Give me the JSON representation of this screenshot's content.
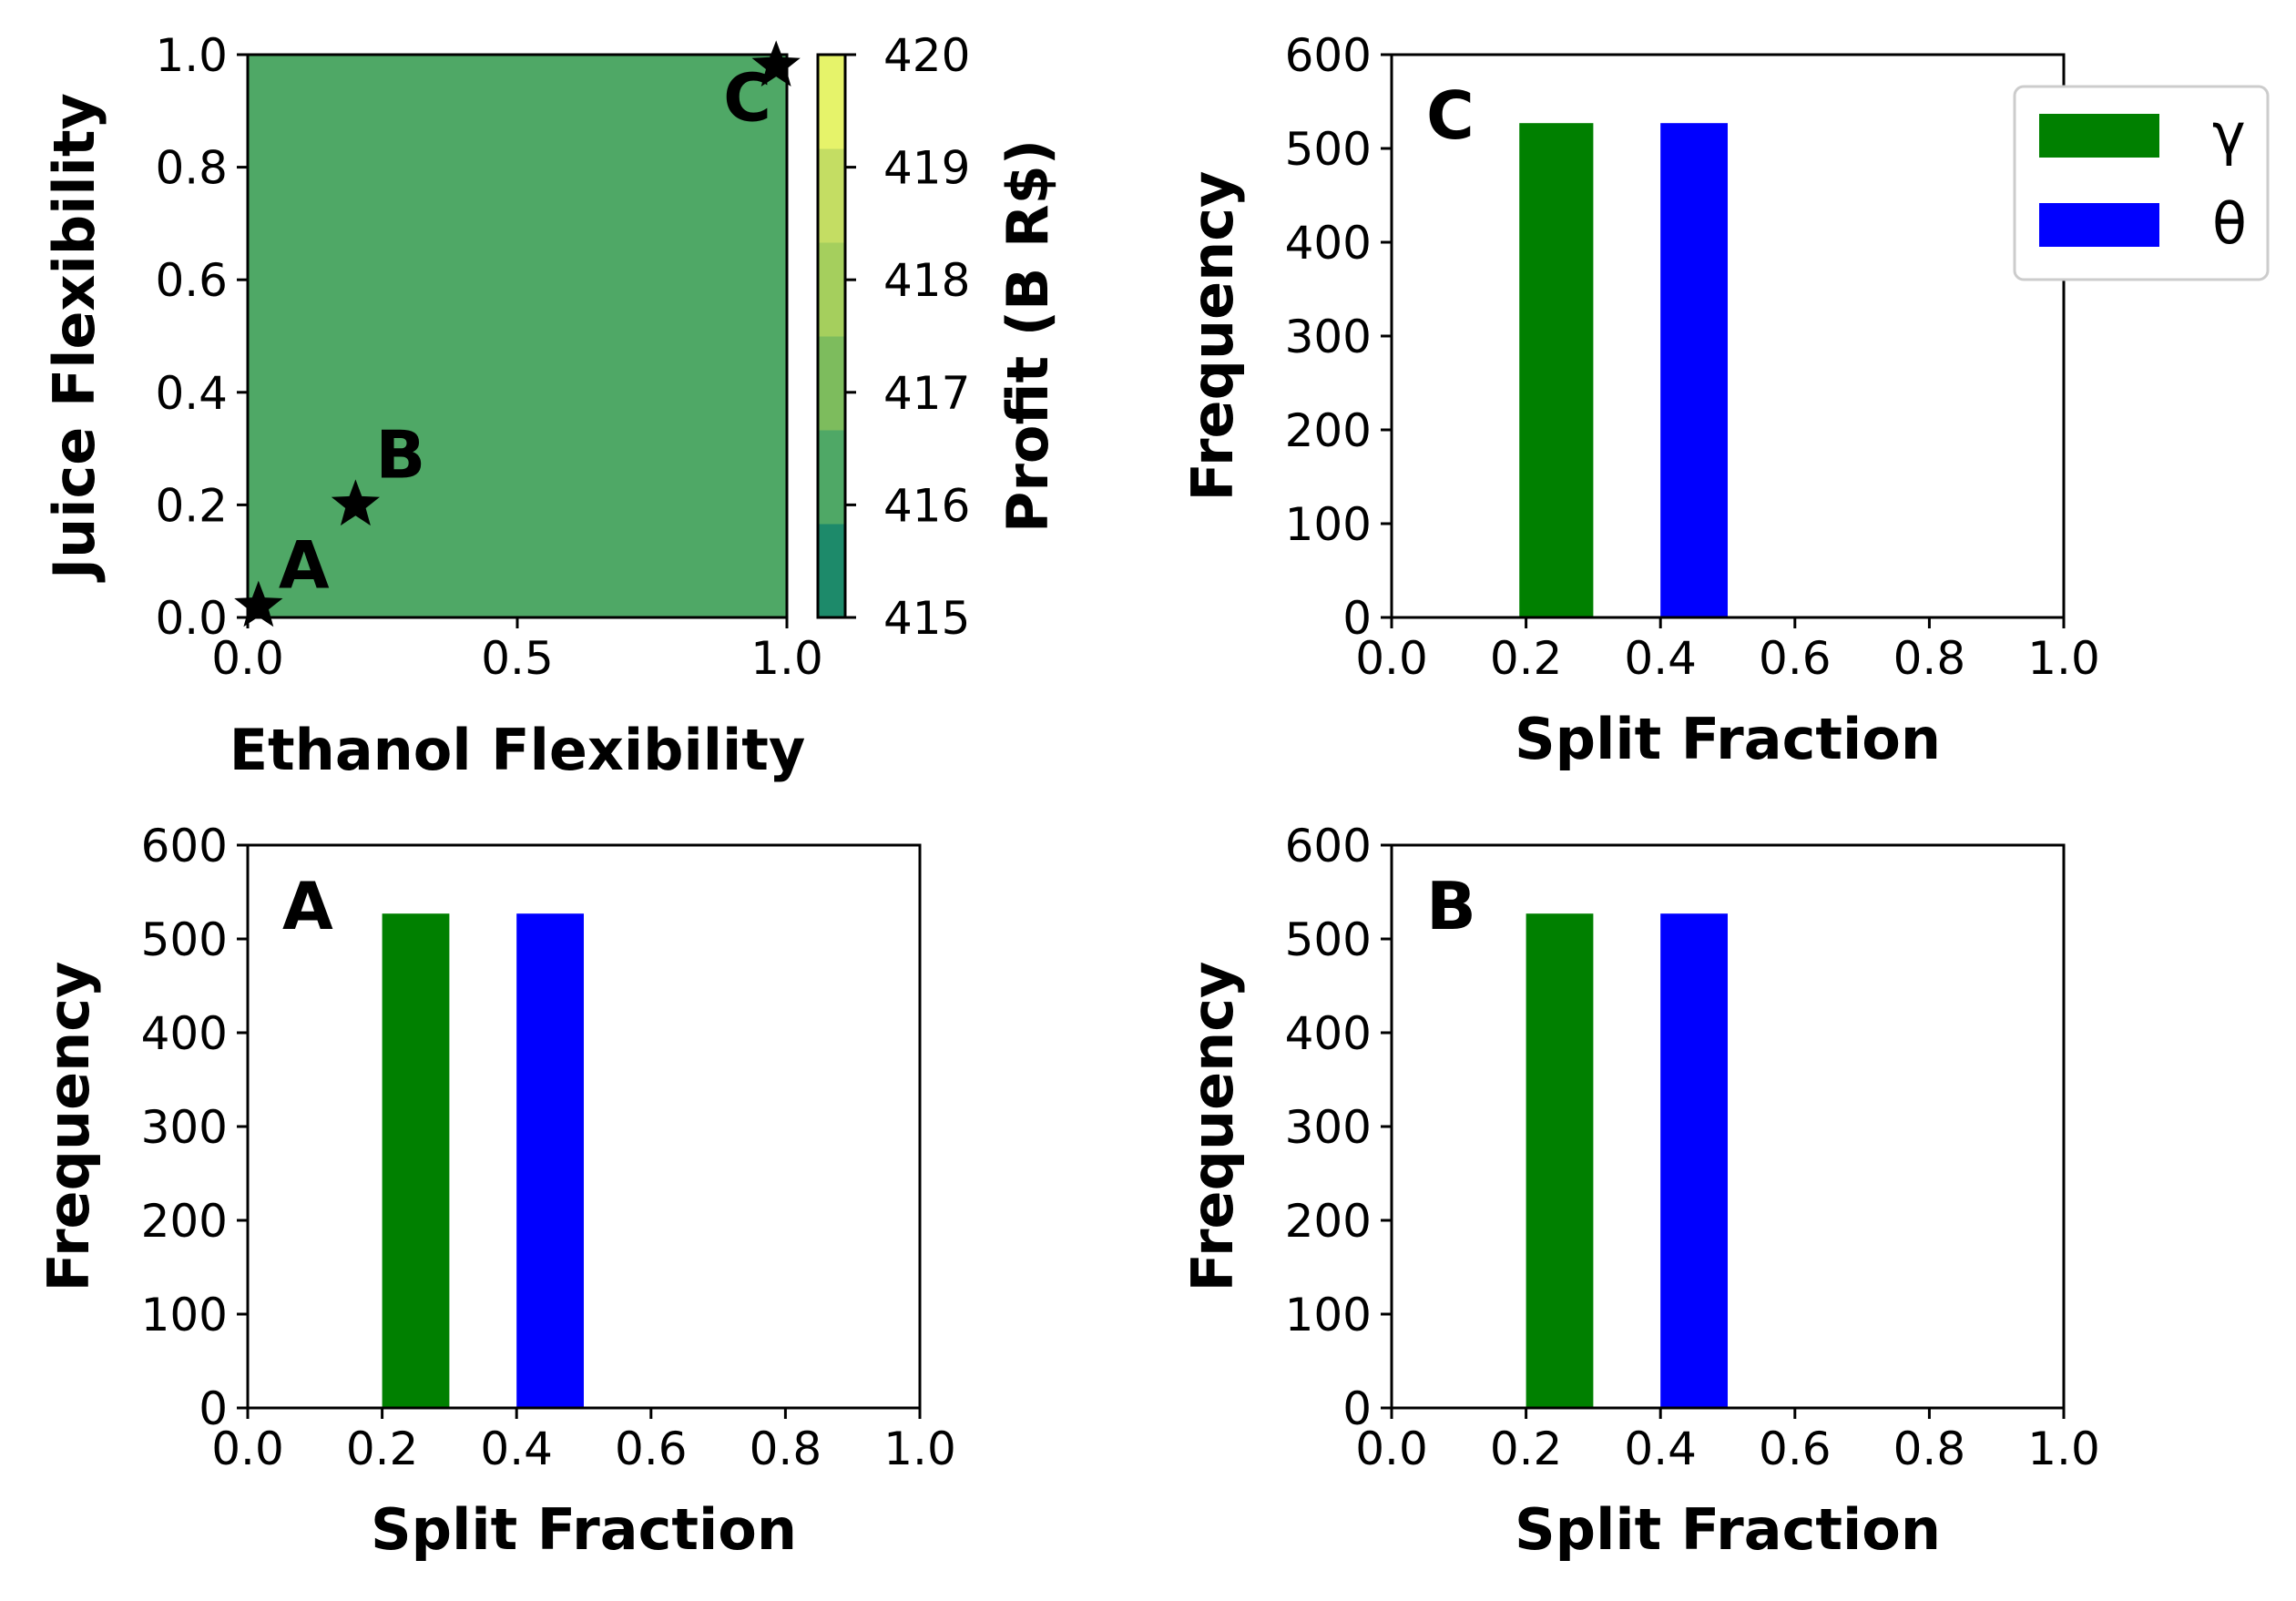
{
  "colors": {
    "gamma": "#008000",
    "theta": "#0000ff",
    "contour_levels": [
      "#1d8a6a",
      "#4fa866",
      "#7dbc5d",
      "#a5cf5d",
      "#c4dd63",
      "#e6f36a"
    ]
  },
  "chart_data": [
    {
      "type": "heatmap",
      "panel": "contour",
      "xlabel": "Ethanol Flexibility",
      "ylabel": "Juice Flexibility",
      "xlim": [
        0,
        1
      ],
      "ylim": [
        0,
        1
      ],
      "xticks": [
        "0.0",
        "0.5",
        "1.0"
      ],
      "yticks": [
        "0.0",
        "0.2",
        "0.4",
        "0.6",
        "0.8",
        "1.0"
      ],
      "colorbar": {
        "label": "Profit (B R$)",
        "min": 415,
        "max": 420,
        "ticks": [
          "415",
          "416",
          "417",
          "418",
          "419",
          "420"
        ]
      },
      "fill_value": 416.5,
      "points": [
        {
          "label": "A",
          "x": 0.02,
          "y": 0.02
        },
        {
          "label": "B",
          "x": 0.2,
          "y": 0.2
        },
        {
          "label": "C",
          "x": 0.98,
          "y": 0.98
        }
      ],
      "grid": false
    },
    {
      "type": "bar",
      "panel_label": "C",
      "xlabel": "Split Fraction",
      "ylabel": "Frequency",
      "xlim": [
        0,
        1
      ],
      "ylim": [
        0,
        600
      ],
      "xticks": [
        "0.0",
        "0.2",
        "0.4",
        "0.6",
        "0.8",
        "1.0"
      ],
      "yticks": [
        "0",
        "100",
        "200",
        "300",
        "400",
        "500",
        "600"
      ],
      "series": [
        {
          "name": "γ",
          "bins": [
            [
              0.19,
              0.3
            ]
          ],
          "values": [
            527
          ]
        },
        {
          "name": "θ",
          "bins": [
            [
              0.4,
              0.5
            ]
          ],
          "values": [
            527
          ]
        }
      ],
      "legend": "upper-right",
      "grid": false
    },
    {
      "type": "bar",
      "panel_label": "A",
      "xlabel": "Split Fraction",
      "ylabel": "Frequency",
      "xlim": [
        0,
        1
      ],
      "ylim": [
        0,
        600
      ],
      "xticks": [
        "0.0",
        "0.2",
        "0.4",
        "0.6",
        "0.8",
        "1.0"
      ],
      "yticks": [
        "0",
        "100",
        "200",
        "300",
        "400",
        "500",
        "600"
      ],
      "series": [
        {
          "name": "γ",
          "bins": [
            [
              0.2,
              0.3
            ]
          ],
          "values": [
            527
          ]
        },
        {
          "name": "θ",
          "bins": [
            [
              0.4,
              0.5
            ]
          ],
          "values": [
            527
          ]
        }
      ],
      "grid": false
    },
    {
      "type": "bar",
      "panel_label": "B",
      "xlabel": "Split Fraction",
      "ylabel": "Frequency",
      "xlim": [
        0,
        1
      ],
      "ylim": [
        0,
        600
      ],
      "xticks": [
        "0.0",
        "0.2",
        "0.4",
        "0.6",
        "0.8",
        "1.0"
      ],
      "yticks": [
        "0",
        "100",
        "200",
        "300",
        "400",
        "500",
        "600"
      ],
      "series": [
        {
          "name": "γ",
          "bins": [
            [
              0.2,
              0.3
            ]
          ],
          "values": [
            527
          ]
        },
        {
          "name": "θ",
          "bins": [
            [
              0.4,
              0.5
            ]
          ],
          "values": [
            527
          ]
        }
      ],
      "grid": false
    }
  ]
}
